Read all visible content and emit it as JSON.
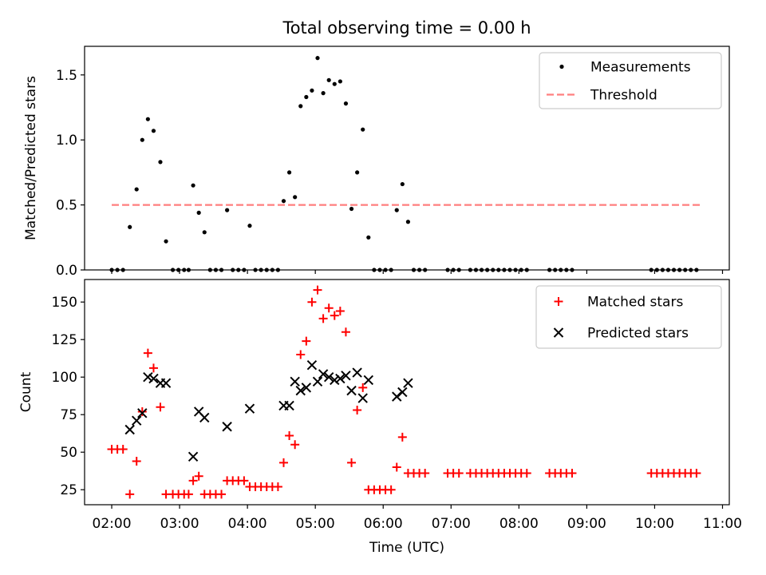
{
  "chart_data": {
    "title": "Total observing time = 0.00 h",
    "xlabel": "Time (UTC)",
    "xlim": [
      "01:36",
      "11:06"
    ],
    "xticks": [
      "02:00",
      "03:00",
      "04:00",
      "05:00",
      "06:00",
      "07:00",
      "08:00",
      "09:00",
      "10:00",
      "11:00"
    ],
    "panels": [
      {
        "type": "scatter",
        "ylabel": "Matched/Predicted stars",
        "ylim": [
          0,
          1.72
        ],
        "yticks": [
          "0.0",
          "0.5",
          "1.0",
          "1.5"
        ],
        "legend": "top-right",
        "series": [
          {
            "name": "Measurements",
            "marker": "dot",
            "color": "#000000",
            "points": [
              [
                "02:00",
                0
              ],
              [
                "02:05",
                0
              ],
              [
                "02:10",
                0
              ],
              [
                "02:16",
                0.33
              ],
              [
                "02:22",
                0.62
              ],
              [
                "02:27",
                1.0
              ],
              [
                "02:32",
                1.16
              ],
              [
                "02:37",
                1.07
              ],
              [
                "02:43",
                0.83
              ],
              [
                "02:48",
                0.22
              ],
              [
                "02:54",
                0
              ],
              [
                "02:59",
                0
              ],
              [
                "03:04",
                0
              ],
              [
                "03:08",
                0
              ],
              [
                "03:12",
                0.65
              ],
              [
                "03:17",
                0.44
              ],
              [
                "03:22",
                0.29
              ],
              [
                "03:27",
                0
              ],
              [
                "03:32",
                0
              ],
              [
                "03:37",
                0
              ],
              [
                "03:42",
                0.46
              ],
              [
                "03:47",
                0
              ],
              [
                "03:52",
                0
              ],
              [
                "03:57",
                0
              ],
              [
                "04:02",
                0.34
              ],
              [
                "04:07",
                0
              ],
              [
                "04:12",
                0
              ],
              [
                "04:17",
                0
              ],
              [
                "04:22",
                0
              ],
              [
                "04:27",
                0
              ],
              [
                "04:32",
                0.53
              ],
              [
                "04:37",
                0.75
              ],
              [
                "04:42",
                0.56
              ],
              [
                "04:47",
                1.26
              ],
              [
                "04:52",
                1.33
              ],
              [
                "04:57",
                1.38
              ],
              [
                "05:02",
                1.63
              ],
              [
                "05:07",
                1.36
              ],
              [
                "05:12",
                1.46
              ],
              [
                "05:17",
                1.43
              ],
              [
                "05:22",
                1.45
              ],
              [
                "05:27",
                1.28
              ],
              [
                "05:32",
                0.47
              ],
              [
                "05:37",
                0.75
              ],
              [
                "05:42",
                1.08
              ],
              [
                "05:47",
                0.25
              ],
              [
                "05:52",
                0
              ],
              [
                "05:57",
                0
              ],
              [
                "06:02",
                0
              ],
              [
                "06:07",
                0
              ],
              [
                "06:12",
                0.46
              ],
              [
                "06:17",
                0.66
              ],
              [
                "06:22",
                0.37
              ],
              [
                "06:27",
                0
              ],
              [
                "06:32",
                0
              ],
              [
                "06:37",
                0
              ],
              [
                "06:57",
                0
              ],
              [
                "07:02",
                0
              ],
              [
                "07:07",
                0
              ],
              [
                "07:17",
                0
              ],
              [
                "07:22",
                0
              ],
              [
                "07:27",
                0
              ],
              [
                "07:32",
                0
              ],
              [
                "07:37",
                0
              ],
              [
                "07:42",
                0
              ],
              [
                "07:47",
                0
              ],
              [
                "07:52",
                0
              ],
              [
                "07:57",
                0
              ],
              [
                "08:02",
                0
              ],
              [
                "08:07",
                0
              ],
              [
                "08:27",
                0
              ],
              [
                "08:32",
                0
              ],
              [
                "08:37",
                0
              ],
              [
                "08:42",
                0
              ],
              [
                "08:47",
                0
              ],
              [
                "09:57",
                0
              ],
              [
                "10:02",
                0
              ],
              [
                "10:07",
                0
              ],
              [
                "10:12",
                0
              ],
              [
                "10:17",
                0
              ],
              [
                "10:22",
                0
              ],
              [
                "10:27",
                0
              ],
              [
                "10:32",
                0
              ],
              [
                "10:37",
                0
              ]
            ]
          },
          {
            "name": "Threshold",
            "marker": "dashed-line",
            "color": "#ff7f7f",
            "points": [
              [
                "02:00",
                0.5
              ],
              [
                "10:40",
                0.5
              ]
            ]
          }
        ]
      },
      {
        "type": "scatter",
        "ylabel": "Count",
        "ylim": [
          15,
          165
        ],
        "yticks": [
          "25",
          "50",
          "75",
          "100",
          "125",
          "150"
        ],
        "legend": "top-right",
        "series": [
          {
            "name": "Matched stars",
            "marker": "plus",
            "color": "#ff0000",
            "points": [
              [
                "02:00",
                52
              ],
              [
                "02:05",
                52
              ],
              [
                "02:10",
                52
              ],
              [
                "02:16",
                22
              ],
              [
                "02:22",
                44
              ],
              [
                "02:27",
                77
              ],
              [
                "02:32",
                116
              ],
              [
                "02:37",
                106
              ],
              [
                "02:43",
                80
              ],
              [
                "02:48",
                22
              ],
              [
                "02:54",
                22
              ],
              [
                "02:59",
                22
              ],
              [
                "03:04",
                22
              ],
              [
                "03:08",
                22
              ],
              [
                "03:12",
                31
              ],
              [
                "03:17",
                34
              ],
              [
                "03:22",
                22
              ],
              [
                "03:27",
                22
              ],
              [
                "03:32",
                22
              ],
              [
                "03:37",
                22
              ],
              [
                "03:42",
                31
              ],
              [
                "03:47",
                31
              ],
              [
                "03:52",
                31
              ],
              [
                "03:57",
                31
              ],
              [
                "04:02",
                27
              ],
              [
                "04:07",
                27
              ],
              [
                "04:12",
                27
              ],
              [
                "04:17",
                27
              ],
              [
                "04:22",
                27
              ],
              [
                "04:27",
                27
              ],
              [
                "04:32",
                43
              ],
              [
                "04:37",
                61
              ],
              [
                "04:42",
                55
              ],
              [
                "04:47",
                115
              ],
              [
                "04:52",
                124
              ],
              [
                "04:57",
                150
              ],
              [
                "05:02",
                158
              ],
              [
                "05:07",
                139
              ],
              [
                "05:12",
                146
              ],
              [
                "05:17",
                141
              ],
              [
                "05:22",
                144
              ],
              [
                "05:27",
                130
              ],
              [
                "05:32",
                43
              ],
              [
                "05:37",
                78
              ],
              [
                "05:42",
                93
              ],
              [
                "05:47",
                25
              ],
              [
                "05:52",
                25
              ],
              [
                "05:57",
                25
              ],
              [
                "06:02",
                25
              ],
              [
                "06:07",
                25
              ],
              [
                "06:12",
                40
              ],
              [
                "06:17",
                60
              ],
              [
                "06:22",
                36
              ],
              [
                "06:27",
                36
              ],
              [
                "06:32",
                36
              ],
              [
                "06:37",
                36
              ],
              [
                "06:57",
                36
              ],
              [
                "07:02",
                36
              ],
              [
                "07:07",
                36
              ],
              [
                "07:17",
                36
              ],
              [
                "07:22",
                36
              ],
              [
                "07:27",
                36
              ],
              [
                "07:32",
                36
              ],
              [
                "07:37",
                36
              ],
              [
                "07:42",
                36
              ],
              [
                "07:47",
                36
              ],
              [
                "07:52",
                36
              ],
              [
                "07:57",
                36
              ],
              [
                "08:02",
                36
              ],
              [
                "08:07",
                36
              ],
              [
                "08:27",
                36
              ],
              [
                "08:32",
                36
              ],
              [
                "08:37",
                36
              ],
              [
                "08:42",
                36
              ],
              [
                "08:47",
                36
              ],
              [
                "09:57",
                36
              ],
              [
                "10:02",
                36
              ],
              [
                "10:07",
                36
              ],
              [
                "10:12",
                36
              ],
              [
                "10:17",
                36
              ],
              [
                "10:22",
                36
              ],
              [
                "10:27",
                36
              ],
              [
                "10:32",
                36
              ],
              [
                "10:37",
                36
              ]
            ]
          },
          {
            "name": "Predicted stars",
            "marker": "x",
            "color": "#000000",
            "points": [
              [
                "02:16",
                65
              ],
              [
                "02:22",
                71
              ],
              [
                "02:27",
                76
              ],
              [
                "02:32",
                100
              ],
              [
                "02:37",
                99
              ],
              [
                "02:43",
                96
              ],
              [
                "02:48",
                96
              ],
              [
                "03:12",
                47
              ],
              [
                "03:17",
                77
              ],
              [
                "03:22",
                73
              ],
              [
                "03:42",
                67
              ],
              [
                "04:02",
                79
              ],
              [
                "04:32",
                81
              ],
              [
                "04:37",
                81
              ],
              [
                "04:42",
                97
              ],
              [
                "04:47",
                91
              ],
              [
                "04:52",
                93
              ],
              [
                "04:57",
                108
              ],
              [
                "05:02",
                97
              ],
              [
                "05:07",
                102
              ],
              [
                "05:12",
                100
              ],
              [
                "05:17",
                98
              ],
              [
                "05:22",
                99
              ],
              [
                "05:27",
                101
              ],
              [
                "05:32",
                91
              ],
              [
                "05:37",
                103
              ],
              [
                "05:42",
                86
              ],
              [
                "05:47",
                98
              ],
              [
                "06:12",
                87
              ],
              [
                "06:17",
                90
              ],
              [
                "06:22",
                96
              ]
            ]
          }
        ]
      }
    ]
  }
}
